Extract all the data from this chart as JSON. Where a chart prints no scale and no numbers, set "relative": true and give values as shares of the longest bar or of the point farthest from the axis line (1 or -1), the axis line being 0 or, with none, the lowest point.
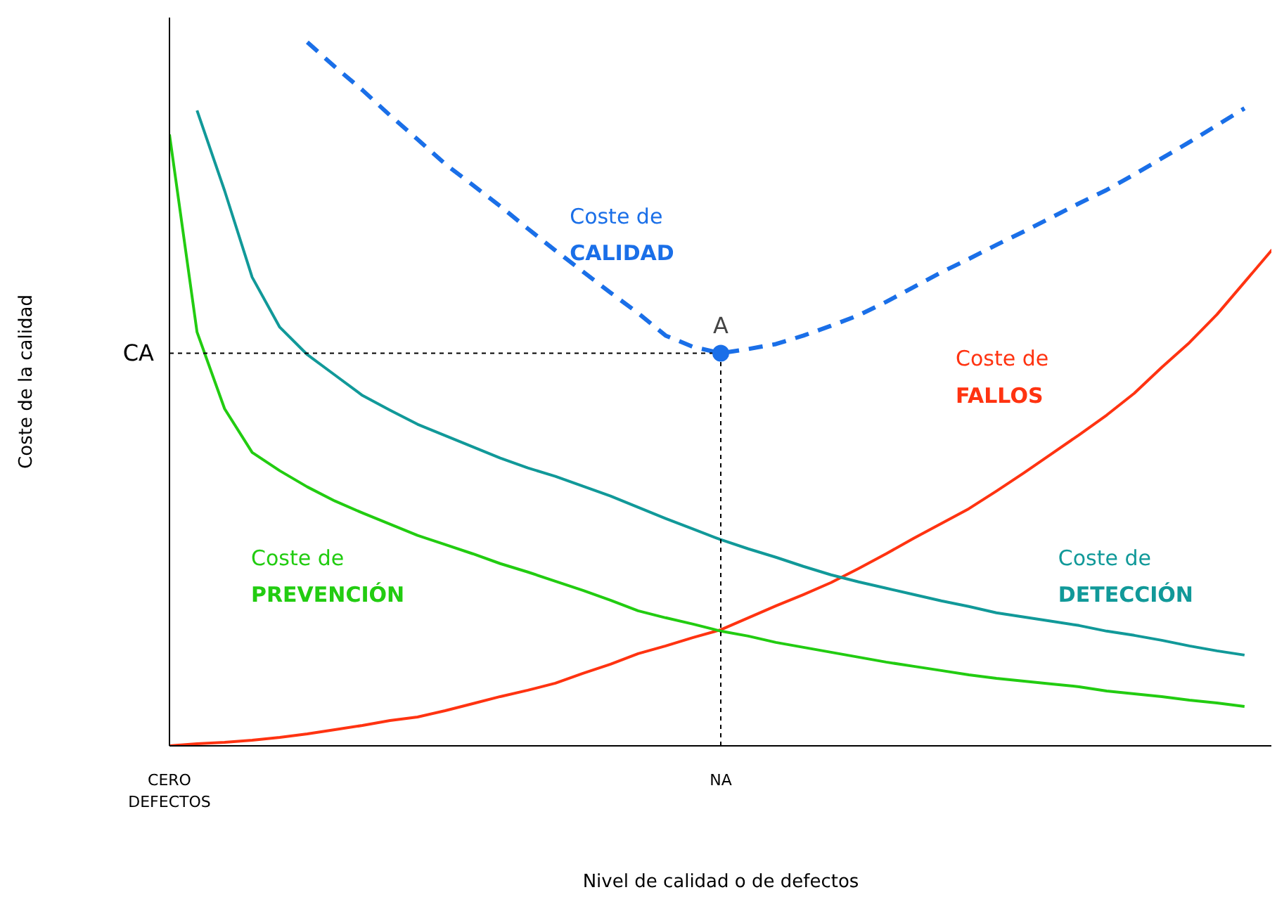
{
  "chart_data": {
    "type": "line",
    "relative": true,
    "xlabel": "Nivel de calidad o de defectos",
    "ylabel": "Coste de la calidad",
    "categories": [
      "CERO\nDEFECTOS",
      null,
      null,
      null,
      null,
      null,
      null,
      null,
      null,
      null,
      null,
      null,
      null,
      null,
      null,
      null,
      null,
      null,
      null,
      null,
      "NA",
      null,
      null,
      null,
      null,
      null,
      null,
      null,
      null,
      null,
      null,
      null,
      null,
      null,
      null,
      null,
      null,
      null,
      null,
      null,
      null
    ],
    "annotations": [
      "A",
      "CA"
    ],
    "series": [
      {
        "name": "Coste de\nCALIDAD",
        "color": "#1a6fe8",
        "line_style": "dashed",
        "values": [
          null,
          null,
          null,
          null,
          null,
          1.0,
          0.965,
          0.932,
          0.896,
          0.862,
          0.827,
          0.797,
          0.767,
          0.735,
          0.704,
          0.674,
          0.644,
          0.615,
          0.583,
          0.567,
          0.558,
          0.564,
          0.571,
          0.583,
          0.597,
          0.612,
          0.631,
          0.652,
          0.673,
          0.692,
          0.712,
          0.731,
          0.751,
          0.771,
          0.79,
          0.812,
          0.835,
          0.858,
          0.882,
          0.906,
          null
        ]
      },
      {
        "name": "Coste de\nFALLOS",
        "color": "#ff3311",
        "line_style": "solid",
        "values": [
          0,
          0.003,
          0.005,
          0.008,
          0.012,
          0.017,
          0.023,
          0.029,
          0.036,
          0.041,
          0.05,
          0.06,
          0.07,
          0.079,
          0.089,
          0.103,
          0.116,
          0.131,
          0.142,
          0.154,
          0.165,
          0.182,
          0.199,
          0.215,
          0.232,
          0.252,
          0.273,
          0.295,
          0.316,
          0.337,
          0.362,
          0.388,
          0.415,
          0.442,
          0.47,
          0.501,
          0.538,
          0.573,
          0.613,
          0.659,
          0.705
        ]
      },
      {
        "name": "Coste de\nDETECCIÓN",
        "color": "#119999",
        "line_style": "solid",
        "values": [
          null,
          0.903,
          0.789,
          0.666,
          0.595,
          0.556,
          0.527,
          0.498,
          0.477,
          0.457,
          0.441,
          0.425,
          0.409,
          0.395,
          0.383,
          0.369,
          0.355,
          0.339,
          0.323,
          0.308,
          0.293,
          0.28,
          0.268,
          0.255,
          0.243,
          0.233,
          0.224,
          0.215,
          0.206,
          0.198,
          0.189,
          0.183,
          0.177,
          0.171,
          0.163,
          0.157,
          0.15,
          0.142,
          0.135,
          0.129,
          null
        ]
      },
      {
        "name": "Coste de\nPREVENCIÓN",
        "color": "#22cc11",
        "line_style": "solid",
        "values": [
          0.869,
          0.588,
          0.479,
          0.417,
          0.391,
          0.368,
          0.348,
          0.331,
          0.315,
          0.299,
          0.286,
          0.273,
          0.259,
          0.247,
          0.234,
          0.221,
          0.207,
          0.192,
          0.182,
          0.173,
          0.163,
          0.156,
          0.147,
          0.14,
          0.133,
          0.126,
          0.119,
          0.113,
          0.107,
          0.101,
          0.096,
          0.092,
          0.088,
          0.084,
          0.078,
          0.074,
          0.07,
          0.065,
          0.061,
          0.056,
          null
        ]
      },
      {
        "color": "#000000",
        "line_style": "dotted",
        "values": [
          0.558,
          0.558,
          0.558,
          0.558,
          0.558,
          0.558,
          0.558,
          0.558,
          0.558,
          0.558,
          0.558,
          0.558,
          0.558,
          0.558,
          0.558,
          0.558,
          0.558,
          0.558,
          0.558,
          0.558,
          0.558,
          null,
          null,
          null,
          null,
          null,
          null,
          null,
          null,
          null,
          null,
          null,
          null,
          null,
          null,
          null,
          null,
          null,
          null,
          null,
          null
        ]
      },
      {
        "type": "lollipop",
        "marker": "circle",
        "line_style": "dotted",
        "color": "#1a6fe8",
        "values": [
          null,
          null,
          null,
          null,
          null,
          null,
          null,
          null,
          null,
          null,
          null,
          null,
          null,
          null,
          null,
          null,
          null,
          null,
          null,
          null,
          0.558,
          null,
          null,
          null,
          null,
          null,
          null,
          null,
          null,
          null,
          null,
          null,
          null,
          null,
          null,
          null,
          null,
          null,
          null,
          null,
          null
        ]
      }
    ]
  }
}
